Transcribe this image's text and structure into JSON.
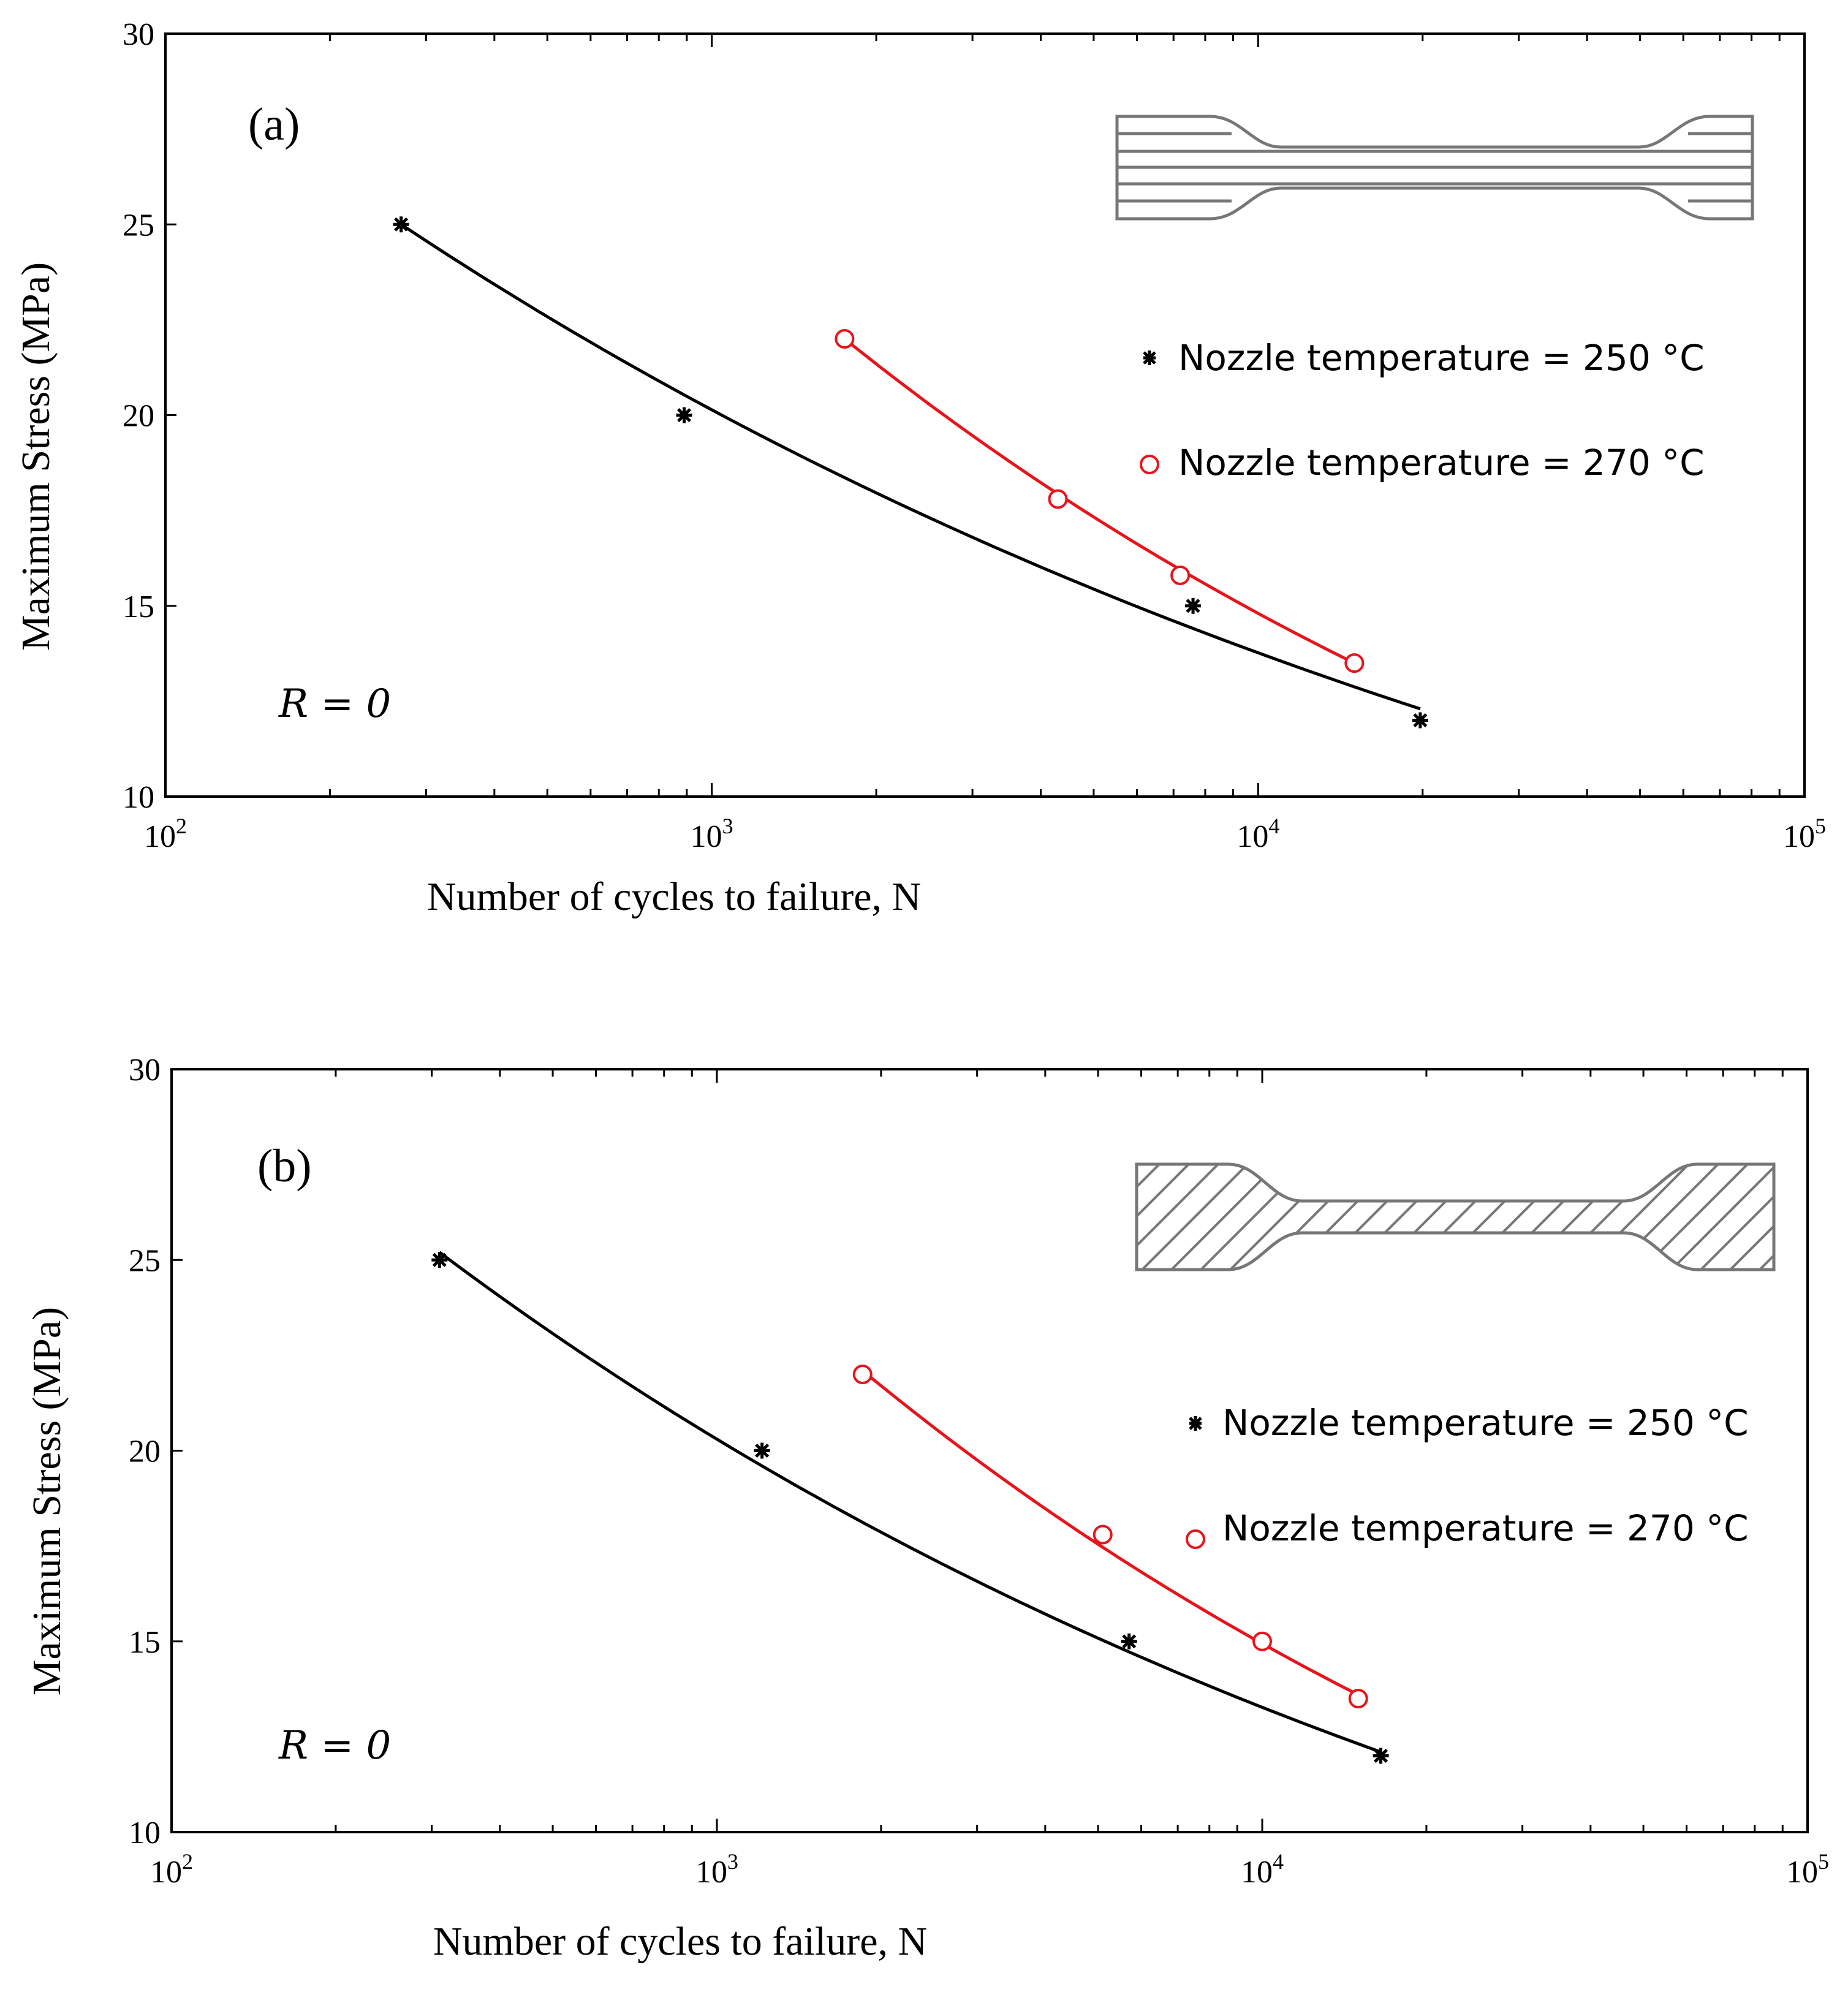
{
  "colors": {
    "series_250": "#000000",
    "series_270": "#e8141b",
    "specimen": "#777777"
  },
  "chart_data": [
    {
      "type": "scatter",
      "panel_label": "(a)",
      "annotation": "R = 0",
      "xlabel": "Number of cycles to failure, N",
      "ylabel": "Maximum Stress (MPa)",
      "xscale": "log",
      "xlim": [
        100,
        100000
      ],
      "ylim": [
        10,
        30
      ],
      "x_tick_labels": [
        {
          "base": "10",
          "exp": "2"
        },
        {
          "base": "10",
          "exp": "3"
        },
        {
          "base": "10",
          "exp": "4"
        },
        {
          "base": "10",
          "exp": "5"
        }
      ],
      "y_ticks": [
        10,
        15,
        20,
        25,
        30
      ],
      "specimen_pattern": "longitudinal",
      "series": [
        {
          "name": "Nozzle temperature = 250 °C",
          "marker": "asterisk",
          "color": "#000000",
          "points": [
            [
              270,
              25
            ],
            [
              890,
              20
            ],
            [
              7600,
              15
            ],
            [
              19800,
              12
            ]
          ],
          "fit": [
            [
              270,
              25
            ],
            [
              19800,
              12.3
            ]
          ]
        },
        {
          "name": "Nozzle temperature = 270 °C",
          "marker": "circle",
          "color": "#e8141b",
          "points": [
            [
              1750,
              22
            ],
            [
              4300,
              17.8
            ],
            [
              7200,
              15.8
            ],
            [
              15000,
              13.5
            ]
          ],
          "fit": [
            [
              1750,
              22
            ],
            [
              15000,
              13.5
            ]
          ]
        }
      ]
    },
    {
      "type": "scatter",
      "panel_label": "(b)",
      "annotation": "R = 0",
      "xlabel": "Number of cycles to failure, N",
      "ylabel": "Maximum Stress (MPa)",
      "xscale": "log",
      "xlim": [
        100,
        100000
      ],
      "ylim": [
        10,
        30
      ],
      "x_tick_labels": [
        {
          "base": "10",
          "exp": "2"
        },
        {
          "base": "10",
          "exp": "3"
        },
        {
          "base": "10",
          "exp": "4"
        },
        {
          "base": "10",
          "exp": "5"
        }
      ],
      "y_ticks": [
        10,
        15,
        20,
        25,
        30
      ],
      "specimen_pattern": "diagonal",
      "series": [
        {
          "name": "Nozzle temperature = 250 °C",
          "marker": "asterisk",
          "color": "#000000",
          "points": [
            [
              310,
              25
            ],
            [
              1210,
              20
            ],
            [
              5700,
              15
            ],
            [
              16500,
              12
            ]
          ],
          "fit": [
            [
              310,
              25.2
            ],
            [
              16500,
              12.1
            ]
          ]
        },
        {
          "name": "Nozzle temperature = 270 °C",
          "marker": "circle",
          "color": "#e8141b",
          "points": [
            [
              1850,
              22
            ],
            [
              5100,
              17.8
            ],
            [
              10000,
              15
            ],
            [
              15000,
              13.5
            ]
          ],
          "fit": [
            [
              1850,
              22.1
            ],
            [
              15000,
              13.6
            ]
          ]
        }
      ]
    }
  ]
}
